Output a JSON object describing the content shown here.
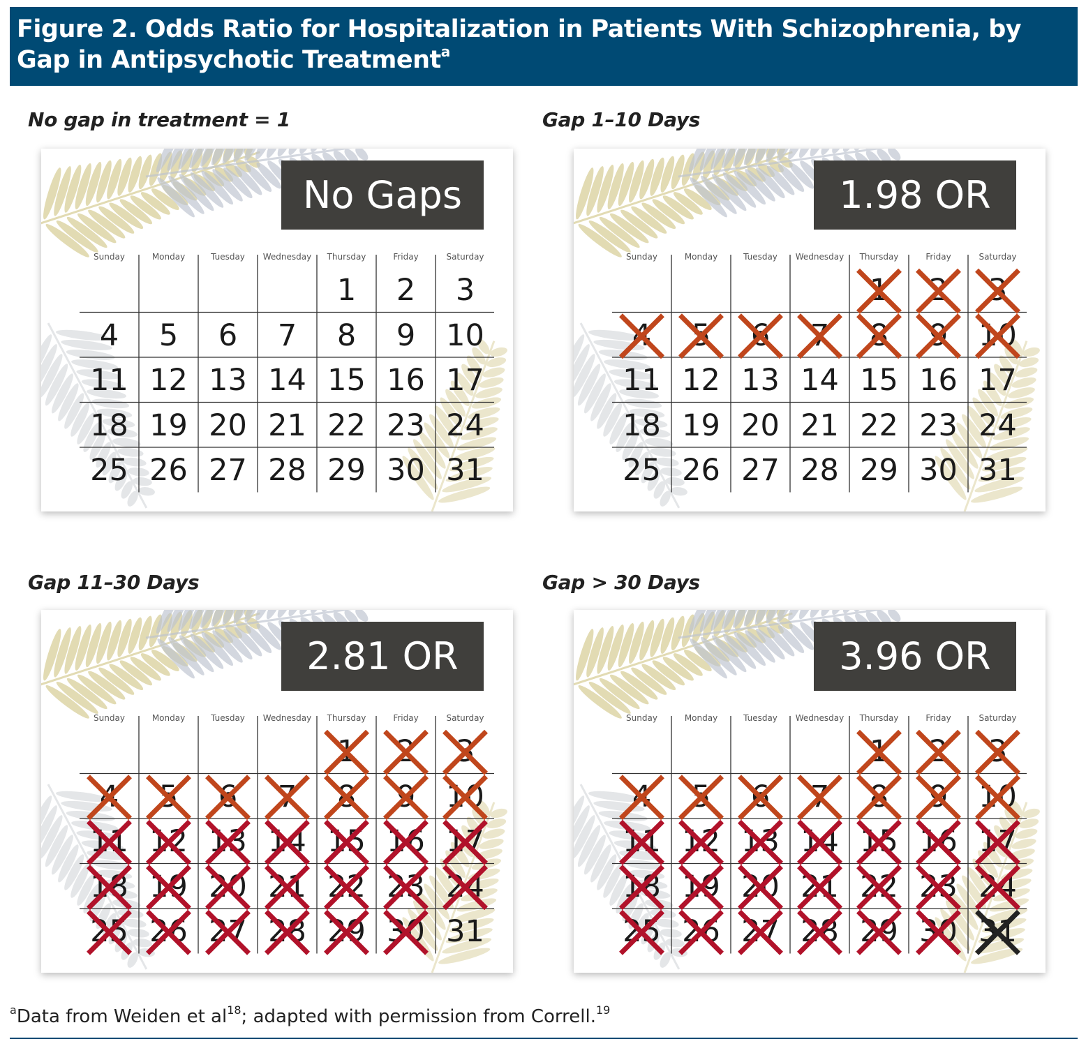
{
  "header": {
    "title": "Figure 2. Odds Ratio for Hospitalization in Patients With Schizophrenia, by Gap in Antipsychotic Treatment",
    "title_sup": "a"
  },
  "weekdays": [
    "Sunday",
    "Monday",
    "Tuesday",
    "Wednesday",
    "Thursday",
    "Friday",
    "Saturday"
  ],
  "month": {
    "first_weekday_index": 4,
    "days": 31
  },
  "colors": {
    "header_bg": "#004a74",
    "or_box_bg": "#403f3c",
    "cross_orange": "#c0461c",
    "cross_red": "#b1122a",
    "cross_black": "#222222"
  },
  "panels": [
    {
      "label": "No gap in treatment = 1",
      "badge": "No Gaps",
      "crossed_days": []
    },
    {
      "label": "Gap 1–10 Days",
      "badge": "1.98 OR",
      "crossed_days": [
        {
          "day": 1,
          "color": "orange"
        },
        {
          "day": 2,
          "color": "orange"
        },
        {
          "day": 3,
          "color": "orange"
        },
        {
          "day": 4,
          "color": "orange"
        },
        {
          "day": 5,
          "color": "orange"
        },
        {
          "day": 6,
          "color": "orange"
        },
        {
          "day": 7,
          "color": "orange"
        },
        {
          "day": 8,
          "color": "orange"
        },
        {
          "day": 9,
          "color": "orange"
        },
        {
          "day": 10,
          "color": "orange"
        }
      ]
    },
    {
      "label": "Gap 11–30 Days",
      "badge": "2.81 OR",
      "crossed_days": [
        {
          "day": 1,
          "color": "orange"
        },
        {
          "day": 2,
          "color": "orange"
        },
        {
          "day": 3,
          "color": "orange"
        },
        {
          "day": 4,
          "color": "orange"
        },
        {
          "day": 5,
          "color": "orange"
        },
        {
          "day": 6,
          "color": "orange"
        },
        {
          "day": 7,
          "color": "orange"
        },
        {
          "day": 8,
          "color": "orange"
        },
        {
          "day": 9,
          "color": "orange"
        },
        {
          "day": 10,
          "color": "orange"
        },
        {
          "day": 11,
          "color": "red"
        },
        {
          "day": 12,
          "color": "red"
        },
        {
          "day": 13,
          "color": "red"
        },
        {
          "day": 14,
          "color": "red"
        },
        {
          "day": 15,
          "color": "red"
        },
        {
          "day": 16,
          "color": "red"
        },
        {
          "day": 17,
          "color": "red"
        },
        {
          "day": 18,
          "color": "red"
        },
        {
          "day": 19,
          "color": "red"
        },
        {
          "day": 20,
          "color": "red"
        },
        {
          "day": 21,
          "color": "red"
        },
        {
          "day": 22,
          "color": "red"
        },
        {
          "day": 23,
          "color": "red"
        },
        {
          "day": 24,
          "color": "red"
        },
        {
          "day": 25,
          "color": "red"
        },
        {
          "day": 26,
          "color": "red"
        },
        {
          "day": 27,
          "color": "red"
        },
        {
          "day": 28,
          "color": "red"
        },
        {
          "day": 29,
          "color": "red"
        },
        {
          "day": 30,
          "color": "red"
        }
      ]
    },
    {
      "label": "Gap > 30 Days",
      "badge": "3.96 OR",
      "crossed_days": [
        {
          "day": 1,
          "color": "orange"
        },
        {
          "day": 2,
          "color": "orange"
        },
        {
          "day": 3,
          "color": "orange"
        },
        {
          "day": 4,
          "color": "orange"
        },
        {
          "day": 5,
          "color": "orange"
        },
        {
          "day": 6,
          "color": "orange"
        },
        {
          "day": 7,
          "color": "orange"
        },
        {
          "day": 8,
          "color": "orange"
        },
        {
          "day": 9,
          "color": "orange"
        },
        {
          "day": 10,
          "color": "orange"
        },
        {
          "day": 11,
          "color": "red"
        },
        {
          "day": 12,
          "color": "red"
        },
        {
          "day": 13,
          "color": "red"
        },
        {
          "day": 14,
          "color": "red"
        },
        {
          "day": 15,
          "color": "red"
        },
        {
          "day": 16,
          "color": "red"
        },
        {
          "day": 17,
          "color": "red"
        },
        {
          "day": 18,
          "color": "red"
        },
        {
          "day": 19,
          "color": "red"
        },
        {
          "day": 20,
          "color": "red"
        },
        {
          "day": 21,
          "color": "red"
        },
        {
          "day": 22,
          "color": "red"
        },
        {
          "day": 23,
          "color": "red"
        },
        {
          "day": 24,
          "color": "red"
        },
        {
          "day": 25,
          "color": "red"
        },
        {
          "day": 26,
          "color": "red"
        },
        {
          "day": 27,
          "color": "red"
        },
        {
          "day": 28,
          "color": "red"
        },
        {
          "day": 29,
          "color": "red"
        },
        {
          "day": 30,
          "color": "red"
        },
        {
          "day": 31,
          "color": "black"
        }
      ]
    }
  ],
  "footnote": {
    "sup_a": "a",
    "text1": "Data from Weiden et al",
    "ref1": "18",
    "text2": "; adapted with permission from Correll.",
    "ref2": "19"
  }
}
